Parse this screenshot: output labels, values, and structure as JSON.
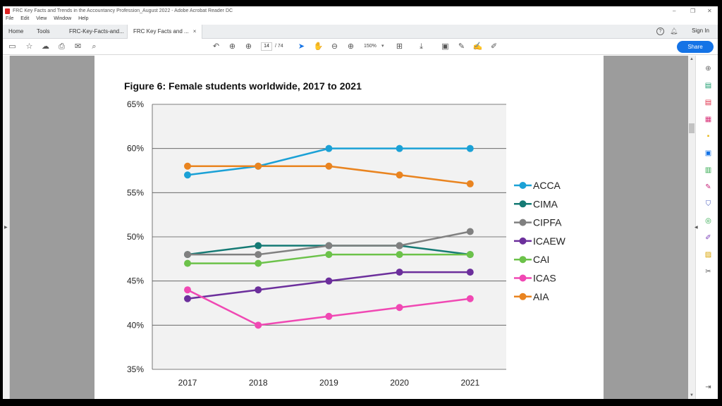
{
  "window": {
    "title": "FRC Key Facts and Trends in the Accountancy Profession_August 2022 - Adobe Acrobat Reader DC",
    "minimize": "–",
    "restore": "❐",
    "close": "✕"
  },
  "menu": [
    "File",
    "Edit",
    "View",
    "Window",
    "Help"
  ],
  "tabs": {
    "home": "Home",
    "tools": "Tools",
    "doc1": "FRC-Key-Facts-and...",
    "doc2": "FRC Key Facts and ...",
    "close_glyph": "×"
  },
  "header": {
    "help": "?",
    "sign_in": "Sign In"
  },
  "toolbar": {
    "page_current": "14",
    "page_total": "/ 74",
    "zoom": "150%",
    "share_label": "Share"
  },
  "figure": {
    "title": "Figure 6: Female students worldwide, 2017 to 2021"
  },
  "chart_data": {
    "type": "line",
    "title": "Figure 6: Female students worldwide, 2017 to 2021",
    "xlabel": "",
    "ylabel": "",
    "categories": [
      "2017",
      "2018",
      "2019",
      "2020",
      "2021"
    ],
    "yticks": [
      "35%",
      "40%",
      "45%",
      "50%",
      "55%",
      "60%",
      "65%"
    ],
    "ylim": [
      35,
      65
    ],
    "grid": "horizontal",
    "legend_position": "right",
    "series": [
      {
        "name": "ACCA",
        "color": "#1ba1d6",
        "values": [
          57,
          58,
          60,
          60,
          60
        ]
      },
      {
        "name": "CIMA",
        "color": "#157a74",
        "values": [
          48,
          49,
          49,
          49,
          48
        ]
      },
      {
        "name": "CIPFA",
        "color": "#808080",
        "values": [
          48,
          48,
          49,
          49,
          50.6
        ]
      },
      {
        "name": "ICAEW",
        "color": "#6c2f9c",
        "values": [
          43,
          44,
          45,
          46,
          46
        ]
      },
      {
        "name": "CAI",
        "color": "#6cc24a",
        "values": [
          47,
          47,
          48,
          48,
          48
        ]
      },
      {
        "name": "ICAS",
        "color": "#f048b3",
        "values": [
          44,
          40,
          41,
          42,
          43
        ]
      },
      {
        "name": "AIA",
        "color": "#e98420",
        "values": [
          58,
          58,
          58,
          57,
          56
        ]
      }
    ]
  }
}
